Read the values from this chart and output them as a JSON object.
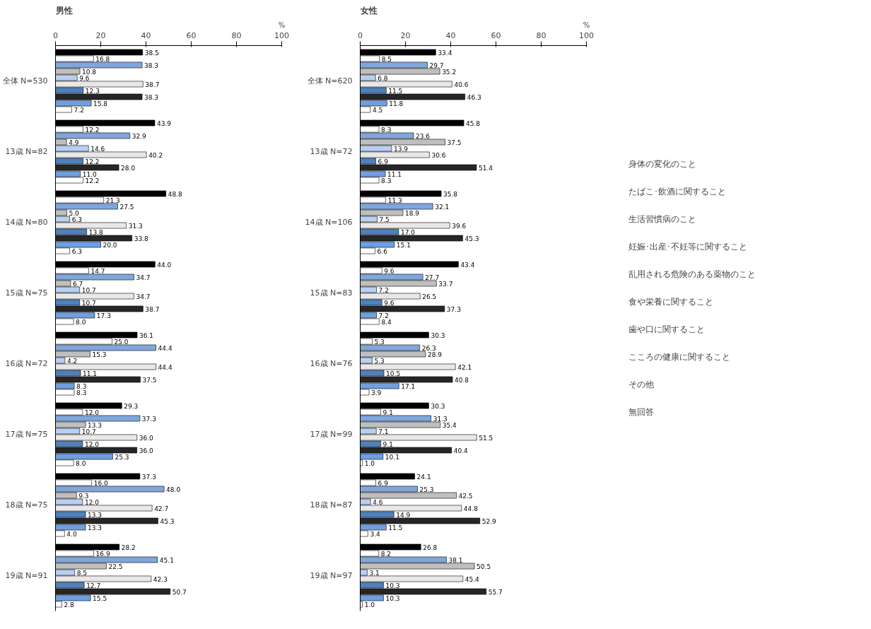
{
  "chart_data": [
    {
      "type": "bar",
      "orientation": "horizontal",
      "title": "男性",
      "xlabel": "%",
      "xlim": [
        0,
        100
      ],
      "xticks": [
        0,
        20,
        40,
        60,
        80,
        100
      ],
      "grid": false,
      "categories": [
        "全体 N=530",
        "13歳 N=82",
        "14歳 N=80",
        "15歳 N=75",
        "16歳 N=72",
        "17歳 N=75",
        "18歳 N=75",
        "19歳 N=91"
      ],
      "series": [
        {
          "color": "#000000",
          "values": [
            38.5,
            43.9,
            48.8,
            44.0,
            36.1,
            29.3,
            37.3,
            28.2
          ],
          "value_labels": [
            "38.5",
            "43.9",
            "48.8",
            "44.0",
            "36.1",
            "29.3",
            "37.3",
            "28.2"
          ]
        },
        {
          "color": "#ffffff",
          "values": [
            16.8,
            12.2,
            21.3,
            14.7,
            25.0,
            12.0,
            16.0,
            16.9
          ],
          "value_labels": [
            "16.8",
            "12.2",
            "21.3",
            "14.7",
            "25.0",
            "12.0",
            "16.0",
            "16.9"
          ]
        },
        {
          "color": "#7fa7db",
          "values": [
            38.3,
            32.9,
            27.5,
            34.7,
            44.4,
            37.3,
            48.0,
            45.1
          ],
          "value_labels": [
            "38.3",
            "32.9",
            "27.5",
            "34.7",
            "44.4",
            "37.3",
            "48.0",
            "45.1"
          ]
        },
        {
          "color": "#bfbfbf",
          "values": [
            10.8,
            4.9,
            5.0,
            6.7,
            15.3,
            13.3,
            9.3,
            22.5
          ],
          "value_labels": [
            "10.8",
            "4.9",
            "5.0",
            "6.7",
            "15.3",
            "13.3",
            "9.3",
            "22.5"
          ]
        },
        {
          "color": "#b8cff0",
          "values": [
            9.6,
            14.6,
            6.3,
            10.7,
            4.2,
            10.7,
            12.0,
            8.5
          ],
          "value_labels": [
            "9.6",
            "14.6",
            "6.3",
            "10.7",
            "4.2",
            "10.7",
            "12.0",
            "8.5"
          ]
        },
        {
          "color": "#e8e8e8",
          "values": [
            38.7,
            40.2,
            31.3,
            34.7,
            44.4,
            36.0,
            42.7,
            42.3
          ],
          "value_labels": [
            "38.7",
            "40.2",
            "31.3",
            "34.7",
            "44.4",
            "36.0",
            "42.7",
            "42.3"
          ]
        },
        {
          "color": "#4f81bd",
          "values": [
            12.3,
            12.2,
            13.8,
            10.7,
            11.1,
            12.0,
            13.3,
            12.7
          ],
          "value_labels": [
            "12.3",
            "12.2",
            "13.8",
            "10.7",
            "11.1",
            "12.0",
            "13.3",
            "12.7"
          ]
        },
        {
          "color": "#262626",
          "values": [
            38.3,
            28.0,
            33.8,
            38.7,
            37.5,
            36.0,
            45.3,
            50.7
          ],
          "value_labels": [
            "38.3",
            "28.0",
            "33.8",
            "38.7",
            "37.5",
            "36.0",
            "45.3",
            "50.7"
          ]
        },
        {
          "color": "#6f9fe0",
          "values": [
            15.8,
            11.0,
            20.0,
            17.3,
            8.3,
            25.3,
            13.3,
            15.5
          ],
          "value_labels": [
            "15.8",
            "11.0",
            "20.0",
            "17.3",
            "8.3",
            "25.3",
            "13.3",
            "15.5"
          ]
        },
        {
          "color": "#ffffff",
          "values": [
            7.2,
            12.2,
            6.3,
            8.0,
            8.3,
            8.0,
            4.0,
            2.8
          ],
          "value_labels": [
            "7.2",
            "12.2",
            "6.3",
            "8.0",
            "8.3",
            "8.0",
            "4.0",
            "2.8"
          ]
        }
      ]
    },
    {
      "type": "bar",
      "orientation": "horizontal",
      "title": "女性",
      "xlabel": "%",
      "xlim": [
        0,
        100
      ],
      "xticks": [
        0,
        20,
        40,
        60,
        80,
        100
      ],
      "grid": false,
      "legend": "right",
      "categories": [
        "全体 N=620",
        "13歳 N=72",
        "14歳 N=106",
        "15歳 N=83",
        "16歳 N=76",
        "17歳 N=99",
        "18歳 N=87",
        "19歳 N=97"
      ],
      "series": [
        {
          "name": "身体の変化のこと",
          "color": "#000000",
          "values": [
            33.4,
            45.8,
            35.8,
            43.4,
            30.3,
            30.3,
            24.1,
            26.8
          ],
          "value_labels": [
            "33.4",
            "45.8",
            "35.8",
            "43.4",
            "30.3",
            "30.3",
            "24.1",
            "26.8"
          ]
        },
        {
          "name": "たばこ･飲酒に関すること",
          "color": "#ffffff",
          "values": [
            8.5,
            8.3,
            11.3,
            9.6,
            5.3,
            9.1,
            6.9,
            8.2
          ],
          "value_labels": [
            "8.5",
            "8.3",
            "11.3",
            "9.6",
            "5.3",
            "9.1",
            "6.9",
            "8.2"
          ]
        },
        {
          "name": "生活習慣病のこと",
          "color": "#7fa7db",
          "values": [
            29.7,
            23.6,
            32.1,
            27.7,
            26.3,
            31.3,
            25.3,
            38.1
          ],
          "value_labels": [
            "29.7",
            "23.6",
            "32.1",
            "27.7",
            "26.3",
            "31.3",
            "25.3",
            "38.1"
          ]
        },
        {
          "name": "妊娠･出産･不妊等に関すること",
          "color": "#bfbfbf",
          "values": [
            35.2,
            37.5,
            18.9,
            33.7,
            28.9,
            35.4,
            42.5,
            50.5
          ],
          "value_labels": [
            "35.2",
            "37.5",
            "18.9",
            "33.7",
            "28.9",
            "35.4",
            "42.5",
            "50.5"
          ]
        },
        {
          "name": "乱用される危険のある薬物のこと",
          "color": "#b8cff0",
          "values": [
            6.8,
            13.9,
            7.5,
            7.2,
            5.3,
            7.1,
            4.6,
            3.1
          ],
          "value_labels": [
            "6.8",
            "13.9",
            "7.5",
            "7.2",
            "5.3",
            "7.1",
            "4.6",
            "3.1"
          ]
        },
        {
          "name": "食や栄養に関すること",
          "color": "#e8e8e8",
          "values": [
            40.6,
            30.6,
            39.6,
            26.5,
            42.1,
            51.5,
            44.8,
            45.4
          ],
          "value_labels": [
            "40.6",
            "30.6",
            "39.6",
            "26.5",
            "42.1",
            "51.5",
            "44.8",
            "45.4"
          ]
        },
        {
          "name": "歯や口に関すること",
          "color": "#4f81bd",
          "values": [
            11.5,
            6.9,
            17.0,
            9.6,
            10.5,
            9.1,
            14.9,
            10.3
          ],
          "value_labels": [
            "11.5",
            "6.9",
            "17.0",
            "9.6",
            "10.5",
            "9.1",
            "14.9",
            "10.3"
          ]
        },
        {
          "name": "こころの健康に関すること",
          "color": "#262626",
          "values": [
            46.3,
            51.4,
            45.3,
            37.3,
            40.8,
            40.4,
            52.9,
            55.7
          ],
          "value_labels": [
            "46.3",
            "51.4",
            "45.3",
            "37.3",
            "40.8",
            "40.4",
            "52.9",
            "55.7"
          ]
        },
        {
          "name": "その他",
          "color": "#6f9fe0",
          "values": [
            11.8,
            11.1,
            15.1,
            7.2,
            17.1,
            10.1,
            11.5,
            10.3
          ],
          "value_labels": [
            "11.8",
            "11.1",
            "15.1",
            "7.2",
            "17.1",
            "10.1",
            "11.5",
            "10.3"
          ]
        },
        {
          "name": "無回答",
          "color": "#ffffff",
          "values": [
            4.5,
            8.3,
            6.6,
            8.4,
            3.9,
            1.0,
            3.4,
            1.0
          ],
          "value_labels": [
            "4.5",
            "8.3",
            "6.6",
            "8.4",
            "3.9",
            "1.0",
            "3.4",
            "1.0"
          ]
        }
      ]
    }
  ]
}
